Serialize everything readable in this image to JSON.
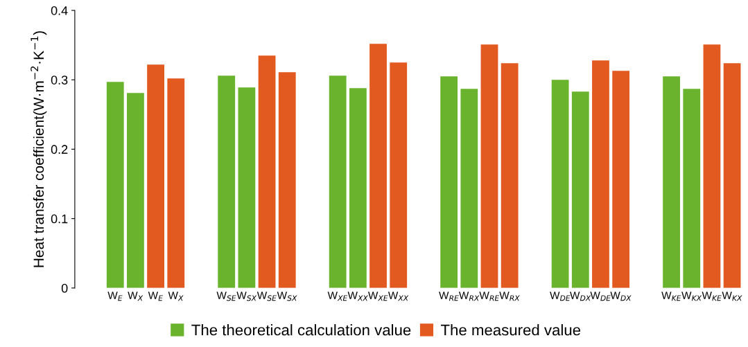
{
  "chart_data": {
    "type": "bar",
    "ylabel": "Heat transfer coefficient(W·m$^{−2}$·K$^{−1}$)",
    "categories": [
      "W$_{E}$",
      "W$_{X}$",
      "W$_{E}$",
      "W$_{X}$",
      "W$_{SE}$",
      "W$_{SX}$",
      "W$_{SE}$",
      "W$_{SX}$",
      "W$_{XE}$",
      "W$_{XX}$",
      "W$_{XE}$",
      "W$_{XX}$",
      "W$_{RE}$",
      "W$_{RX}$",
      "W$_{RE}$",
      "W$_{RX}$",
      "W$_{DE}$",
      "W$_{DX}$",
      "W$_{DE}$",
      "W$_{DX}$",
      "W$_{KE}$",
      "W$_{KX}$",
      "W$_{KE}$",
      "W$_{KX}$"
    ],
    "series": [
      {
        "name": "The theoretical calculation value",
        "color": "#6ab42d",
        "values": [
          0.297,
          0.281,
          null,
          null,
          0.306,
          0.289,
          null,
          null,
          0.306,
          0.288,
          null,
          null,
          0.305,
          0.287,
          null,
          null,
          0.3,
          0.283,
          null,
          null,
          0.305,
          0.287,
          null,
          null
        ]
      },
      {
        "name": "The measured value",
        "color": "#e35a21",
        "values": [
          null,
          null,
          0.322,
          0.302,
          null,
          null,
          0.335,
          0.311,
          null,
          null,
          0.352,
          0.325,
          null,
          null,
          0.351,
          0.324,
          null,
          null,
          0.328,
          0.313,
          null,
          null,
          0.351,
          0.324
        ]
      }
    ],
    "ylim": [
      0,
      0.4
    ],
    "yticks": [
      0,
      0.1,
      0.2,
      0.3,
      0.4
    ],
    "legend": "bottom",
    "grid": false
  }
}
